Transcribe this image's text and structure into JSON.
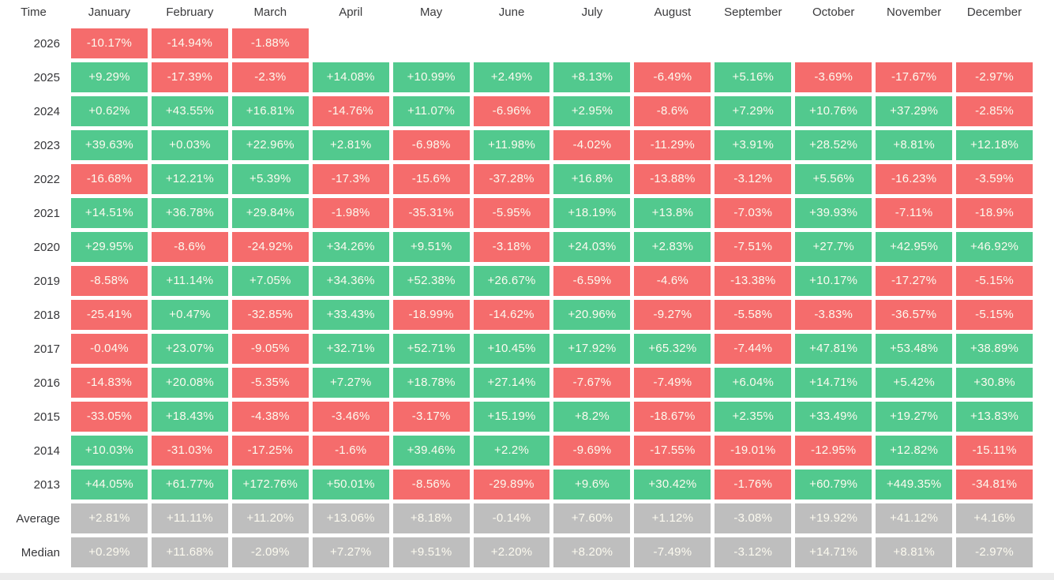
{
  "colors": {
    "positive_bg": "#52C98E",
    "negative_bg": "#F56C6C",
    "summary_bg": "#BEBEBE",
    "cell_text": "#FCFAEF",
    "header_text": "#3A3A3C",
    "label_text": "#37373A",
    "bottom_strip": "#EBEBEB"
  },
  "table": {
    "corner_label": "Time",
    "month_headers": [
      "January",
      "February",
      "March",
      "April",
      "May",
      "June",
      "July",
      "August",
      "September",
      "October",
      "November",
      "December"
    ],
    "rows": [
      {
        "label": "2026",
        "kind": "year",
        "values": [
          "-10.17%",
          "-14.94%",
          "-1.88%",
          "",
          "",
          "",
          "",
          "",
          "",
          "",
          "",
          ""
        ]
      },
      {
        "label": "2025",
        "kind": "year",
        "values": [
          "+9.29%",
          "-17.39%",
          "-2.3%",
          "+14.08%",
          "+10.99%",
          "+2.49%",
          "+8.13%",
          "-6.49%",
          "+5.16%",
          "-3.69%",
          "-17.67%",
          "-2.97%"
        ]
      },
      {
        "label": "2024",
        "kind": "year",
        "values": [
          "+0.62%",
          "+43.55%",
          "+16.81%",
          "-14.76%",
          "+11.07%",
          "-6.96%",
          "+2.95%",
          "-8.6%",
          "+7.29%",
          "+10.76%",
          "+37.29%",
          "-2.85%"
        ]
      },
      {
        "label": "2023",
        "kind": "year",
        "values": [
          "+39.63%",
          "+0.03%",
          "+22.96%",
          "+2.81%",
          "-6.98%",
          "+11.98%",
          "-4.02%",
          "-11.29%",
          "+3.91%",
          "+28.52%",
          "+8.81%",
          "+12.18%"
        ]
      },
      {
        "label": "2022",
        "kind": "year",
        "values": [
          "-16.68%",
          "+12.21%",
          "+5.39%",
          "-17.3%",
          "-15.6%",
          "-37.28%",
          "+16.8%",
          "-13.88%",
          "-3.12%",
          "+5.56%",
          "-16.23%",
          "-3.59%"
        ]
      },
      {
        "label": "2021",
        "kind": "year",
        "values": [
          "+14.51%",
          "+36.78%",
          "+29.84%",
          "-1.98%",
          "-35.31%",
          "-5.95%",
          "+18.19%",
          "+13.8%",
          "-7.03%",
          "+39.93%",
          "-7.11%",
          "-18.9%"
        ]
      },
      {
        "label": "2020",
        "kind": "year",
        "values": [
          "+29.95%",
          "-8.6%",
          "-24.92%",
          "+34.26%",
          "+9.51%",
          "-3.18%",
          "+24.03%",
          "+2.83%",
          "-7.51%",
          "+27.7%",
          "+42.95%",
          "+46.92%"
        ]
      },
      {
        "label": "2019",
        "kind": "year",
        "values": [
          "-8.58%",
          "+11.14%",
          "+7.05%",
          "+34.36%",
          "+52.38%",
          "+26.67%",
          "-6.59%",
          "-4.6%",
          "-13.38%",
          "+10.17%",
          "-17.27%",
          "-5.15%"
        ]
      },
      {
        "label": "2018",
        "kind": "year",
        "values": [
          "-25.41%",
          "+0.47%",
          "-32.85%",
          "+33.43%",
          "-18.99%",
          "-14.62%",
          "+20.96%",
          "-9.27%",
          "-5.58%",
          "-3.83%",
          "-36.57%",
          "-5.15%"
        ]
      },
      {
        "label": "2017",
        "kind": "year",
        "values": [
          "-0.04%",
          "+23.07%",
          "-9.05%",
          "+32.71%",
          "+52.71%",
          "+10.45%",
          "+17.92%",
          "+65.32%",
          "-7.44%",
          "+47.81%",
          "+53.48%",
          "+38.89%"
        ]
      },
      {
        "label": "2016",
        "kind": "year",
        "values": [
          "-14.83%",
          "+20.08%",
          "-5.35%",
          "+7.27%",
          "+18.78%",
          "+27.14%",
          "-7.67%",
          "-7.49%",
          "+6.04%",
          "+14.71%",
          "+5.42%",
          "+30.8%"
        ]
      },
      {
        "label": "2015",
        "kind": "year",
        "values": [
          "-33.05%",
          "+18.43%",
          "-4.38%",
          "-3.46%",
          "-3.17%",
          "+15.19%",
          "+8.2%",
          "-18.67%",
          "+2.35%",
          "+33.49%",
          "+19.27%",
          "+13.83%"
        ]
      },
      {
        "label": "2014",
        "kind": "year",
        "values": [
          "+10.03%",
          "-31.03%",
          "-17.25%",
          "-1.6%",
          "+39.46%",
          "+2.2%",
          "-9.69%",
          "-17.55%",
          "-19.01%",
          "-12.95%",
          "+12.82%",
          "-15.11%"
        ]
      },
      {
        "label": "2013",
        "kind": "year",
        "values": [
          "+44.05%",
          "+61.77%",
          "+172.76%",
          "+50.01%",
          "-8.56%",
          "-29.89%",
          "+9.6%",
          "+30.42%",
          "-1.76%",
          "+60.79%",
          "+449.35%",
          "-34.81%"
        ]
      },
      {
        "label": "Average",
        "kind": "summary",
        "values": [
          "+2.81%",
          "+11.11%",
          "+11.20%",
          "+13.06%",
          "+8.18%",
          "-0.14%",
          "+7.60%",
          "+1.12%",
          "-3.08%",
          "+19.92%",
          "+41.12%",
          "+4.16%"
        ]
      },
      {
        "label": "Median",
        "kind": "summary",
        "values": [
          "+0.29%",
          "+11.68%",
          "-2.09%",
          "+7.27%",
          "+9.51%",
          "+2.20%",
          "+8.20%",
          "-7.49%",
          "-3.12%",
          "+14.71%",
          "+8.81%",
          "-2.97%"
        ]
      }
    ]
  },
  "chart_data": {
    "type": "heatmap",
    "x_categories": [
      "January",
      "February",
      "March",
      "April",
      "May",
      "June",
      "July",
      "August",
      "September",
      "October",
      "November",
      "December"
    ],
    "y_categories": [
      "2026",
      "2025",
      "2024",
      "2023",
      "2022",
      "2021",
      "2020",
      "2019",
      "2018",
      "2017",
      "2016",
      "2015",
      "2014",
      "2013",
      "Average",
      "Median"
    ],
    "value_unit": "%",
    "series": [
      {
        "name": "2026",
        "values": [
          -10.17,
          -14.94,
          -1.88,
          null,
          null,
          null,
          null,
          null,
          null,
          null,
          null,
          null
        ]
      },
      {
        "name": "2025",
        "values": [
          9.29,
          -17.39,
          -2.3,
          14.08,
          10.99,
          2.49,
          8.13,
          -6.49,
          5.16,
          -3.69,
          -17.67,
          -2.97
        ]
      },
      {
        "name": "2024",
        "values": [
          0.62,
          43.55,
          16.81,
          -14.76,
          11.07,
          -6.96,
          2.95,
          -8.6,
          7.29,
          10.76,
          37.29,
          -2.85
        ]
      },
      {
        "name": "2023",
        "values": [
          39.63,
          0.03,
          22.96,
          2.81,
          -6.98,
          11.98,
          -4.02,
          -11.29,
          3.91,
          28.52,
          8.81,
          12.18
        ]
      },
      {
        "name": "2022",
        "values": [
          -16.68,
          12.21,
          5.39,
          -17.3,
          -15.6,
          -37.28,
          16.8,
          -13.88,
          -3.12,
          5.56,
          -16.23,
          -3.59
        ]
      },
      {
        "name": "2021",
        "values": [
          14.51,
          36.78,
          29.84,
          -1.98,
          -35.31,
          -5.95,
          18.19,
          13.8,
          -7.03,
          39.93,
          -7.11,
          -18.9
        ]
      },
      {
        "name": "2020",
        "values": [
          29.95,
          -8.6,
          -24.92,
          34.26,
          9.51,
          -3.18,
          24.03,
          2.83,
          -7.51,
          27.7,
          42.95,
          46.92
        ]
      },
      {
        "name": "2019",
        "values": [
          -8.58,
          11.14,
          7.05,
          34.36,
          52.38,
          26.67,
          -6.59,
          -4.6,
          -13.38,
          10.17,
          -17.27,
          -5.15
        ]
      },
      {
        "name": "2018",
        "values": [
          -25.41,
          0.47,
          -32.85,
          33.43,
          -18.99,
          -14.62,
          20.96,
          -9.27,
          -5.58,
          -3.83,
          -36.57,
          -5.15
        ]
      },
      {
        "name": "2017",
        "values": [
          -0.04,
          23.07,
          -9.05,
          32.71,
          52.71,
          10.45,
          17.92,
          65.32,
          -7.44,
          47.81,
          53.48,
          38.89
        ]
      },
      {
        "name": "2016",
        "values": [
          -14.83,
          20.08,
          -5.35,
          7.27,
          18.78,
          27.14,
          -7.67,
          -7.49,
          6.04,
          14.71,
          5.42,
          30.8
        ]
      },
      {
        "name": "2015",
        "values": [
          -33.05,
          18.43,
          -4.38,
          -3.46,
          -3.17,
          15.19,
          8.2,
          -18.67,
          2.35,
          33.49,
          19.27,
          13.83
        ]
      },
      {
        "name": "2014",
        "values": [
          10.03,
          -31.03,
          -17.25,
          -1.6,
          39.46,
          2.2,
          -9.69,
          -17.55,
          -19.01,
          -12.95,
          12.82,
          -15.11
        ]
      },
      {
        "name": "2013",
        "values": [
          44.05,
          61.77,
          172.76,
          50.01,
          -8.56,
          -29.89,
          9.6,
          30.42,
          -1.76,
          60.79,
          449.35,
          -34.81
        ]
      },
      {
        "name": "Average",
        "values": [
          2.81,
          11.11,
          11.2,
          13.06,
          8.18,
          -0.14,
          7.6,
          1.12,
          -3.08,
          19.92,
          41.12,
          4.16
        ]
      },
      {
        "name": "Median",
        "values": [
          0.29,
          11.68,
          -2.09,
          7.27,
          9.51,
          2.2,
          8.2,
          -7.49,
          -3.12,
          14.71,
          8.81,
          -2.97
        ]
      }
    ],
    "legend_position": "none",
    "grid": false,
    "color_rule": "green = positive month, red = negative month, gray = Average/Median summary rows"
  }
}
